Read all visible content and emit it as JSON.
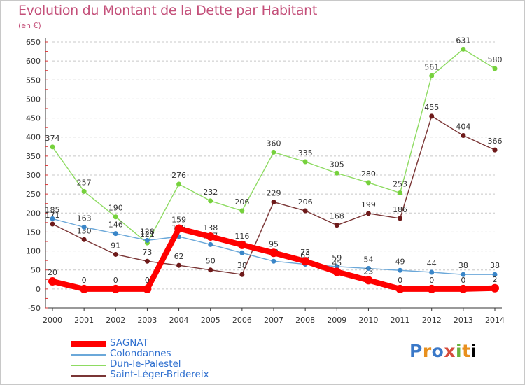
{
  "header": {
    "title": "Evolution du Montant de la Dette par Habitant",
    "subtitle": "(en €)"
  },
  "logo": {
    "text": "Proxiti",
    "letters": [
      "P",
      "r",
      "o",
      "x",
      "i",
      "t",
      "i"
    ]
  },
  "chart_data": {
    "type": "line",
    "title": "Evolution du Montant de la Dette par Habitant",
    "subtitle": "(en €)",
    "xlabel": "",
    "ylabel": "",
    "x": [
      "2000",
      "2001",
      "2002",
      "2003",
      "2004",
      "2005",
      "2006",
      "2007",
      "2008",
      "2009",
      "2010",
      "2011",
      "2012",
      "2013",
      "2014"
    ],
    "ylim": [
      -50,
      650
    ],
    "yticks": [
      -50,
      0,
      50,
      100,
      150,
      200,
      250,
      300,
      350,
      400,
      450,
      500,
      550,
      600,
      650
    ],
    "grid": "horizontal dashed",
    "legend": "bottom-left",
    "series": [
      {
        "name": "Saint-Léger-Bridereix",
        "color": "#6e1a1a",
        "line_color": "#7a3535",
        "values": [
          171,
          130,
          91,
          73,
          62,
          50,
          38,
          229,
          206,
          168,
          199,
          186,
          455,
          404,
          366
        ]
      },
      {
        "name": "Dun-le-Palestel",
        "color": "#76d13c",
        "line_color": "#8edb62",
        "values": [
          374,
          257,
          190,
          121,
          276,
          232,
          206,
          360,
          335,
          305,
          280,
          253,
          561,
          631,
          580
        ]
      },
      {
        "name": "Colondannes",
        "color": "#3a86c8",
        "line_color": "#6ba8d9",
        "values": [
          185,
          163,
          146,
          128,
          138,
          117,
          95,
          73,
          65,
          59,
          54,
          49,
          44,
          38,
          38
        ]
      },
      {
        "name": "SAGNAT",
        "color": "#ff0000",
        "line_color": "#ff0000",
        "values": [
          20,
          0,
          0,
          0,
          159,
          138,
          116,
          95,
          73,
          45,
          23,
          0,
          0,
          0,
          2
        ]
      }
    ]
  }
}
